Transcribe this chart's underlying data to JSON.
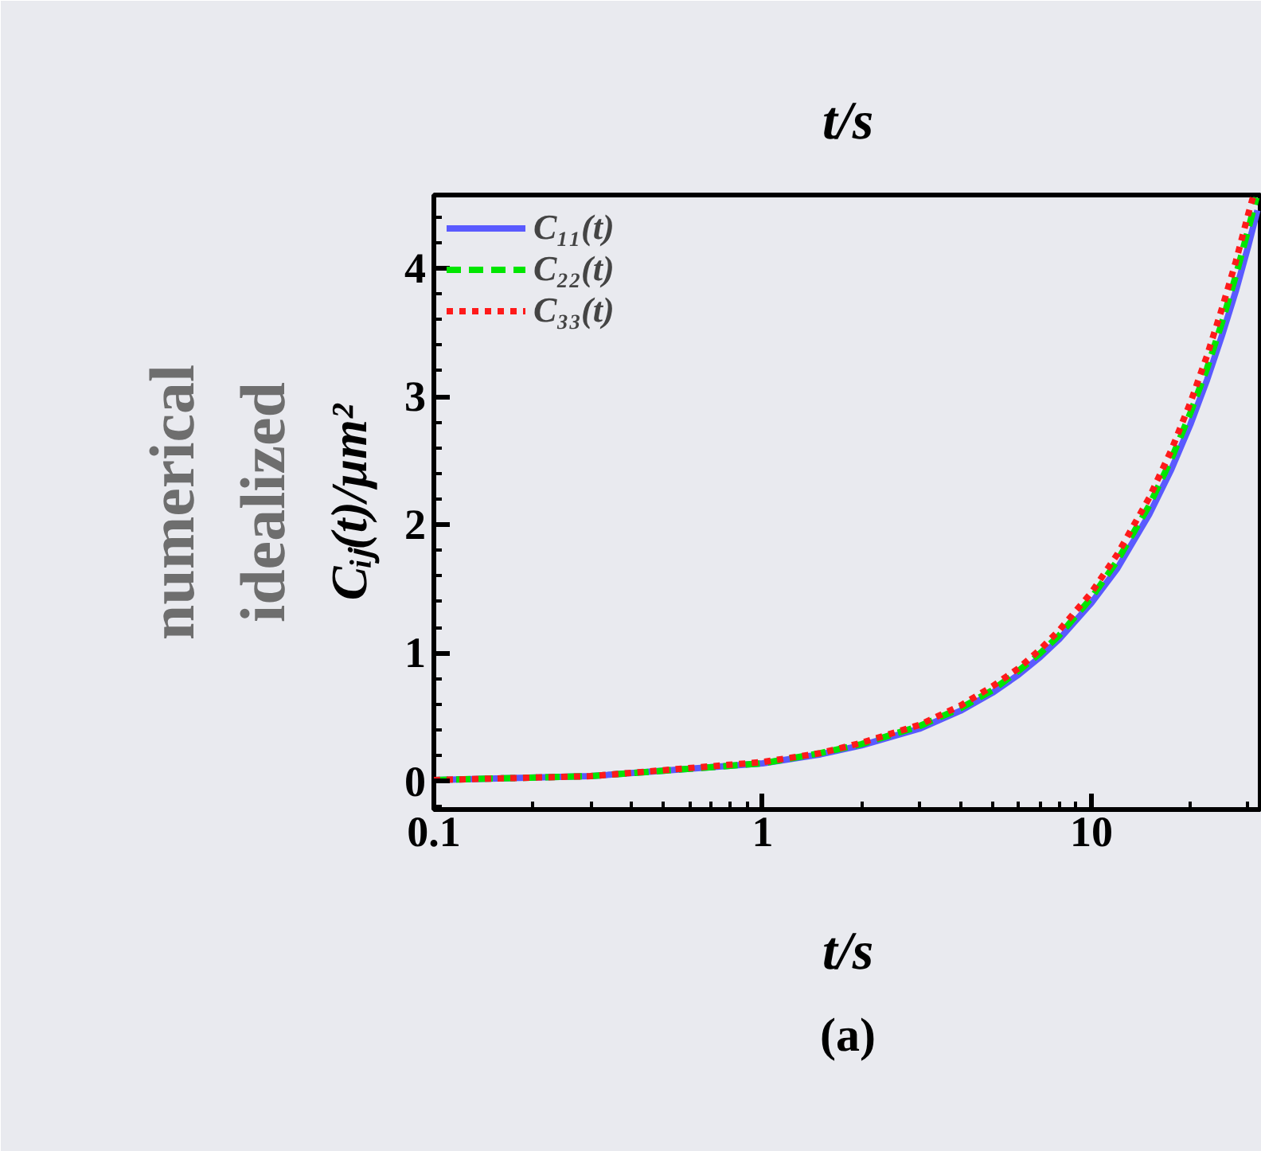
{
  "chart_data": {
    "type": "line",
    "title": "t/s",
    "xlabel": "t/s",
    "ylabel": "Cᵢⱼ(t)/μm²",
    "log": "x",
    "xlim": [
      0.1,
      33
    ],
    "ylim": [
      -0.22,
      4.57
    ],
    "xticks": [
      0.1,
      1,
      10
    ],
    "yticks": [
      0,
      1,
      2,
      3,
      4
    ],
    "grid": false,
    "legend": "top left",
    "annotations": [
      "numerical",
      "idealized",
      "(a)"
    ],
    "series": [
      {
        "name": "C₁₁(t)",
        "color": "#5a5aff",
        "line_style": "solid",
        "x": [
          0.1,
          0.3,
          1,
          1.5,
          2,
          3,
          4,
          5,
          6,
          7,
          8,
          10,
          12,
          15,
          17.5,
          20,
          22.5,
          25,
          27.5,
          30,
          32
        ],
        "values": [
          0.01,
          0.04,
          0.14,
          0.21,
          0.28,
          0.41,
          0.55,
          0.69,
          0.83,
          0.97,
          1.11,
          1.39,
          1.66,
          2.08,
          2.43,
          2.78,
          3.13,
          3.48,
          3.82,
          4.17,
          4.45
        ]
      },
      {
        "name": "C₂₂(t)",
        "color": "#00e600",
        "line_style": "dashed",
        "x": [
          0.1,
          0.3,
          1,
          1.5,
          2,
          3,
          4,
          5,
          6,
          7,
          8,
          10,
          12,
          15,
          17.5,
          20,
          22.5,
          25,
          27.5,
          30,
          31.8
        ],
        "values": [
          0.01,
          0.04,
          0.14,
          0.22,
          0.29,
          0.43,
          0.57,
          0.71,
          0.86,
          1.0,
          1.14,
          1.43,
          1.72,
          2.15,
          2.51,
          2.87,
          3.22,
          3.58,
          3.94,
          4.3,
          4.55
        ]
      },
      {
        "name": "C₃₃(t)",
        "color": "#ff1a1a",
        "line_style": "dotted",
        "x": [
          0.1,
          0.3,
          1,
          1.5,
          2,
          3,
          4,
          5,
          6,
          7,
          8,
          10,
          12,
          15,
          17.5,
          20,
          22.5,
          25,
          27.5,
          30,
          31
        ],
        "values": [
          0.01,
          0.04,
          0.15,
          0.22,
          0.3,
          0.44,
          0.59,
          0.74,
          0.88,
          1.03,
          1.18,
          1.47,
          1.77,
          2.21,
          2.58,
          2.95,
          3.32,
          3.69,
          4.05,
          4.42,
          4.55
        ]
      }
    ]
  }
}
